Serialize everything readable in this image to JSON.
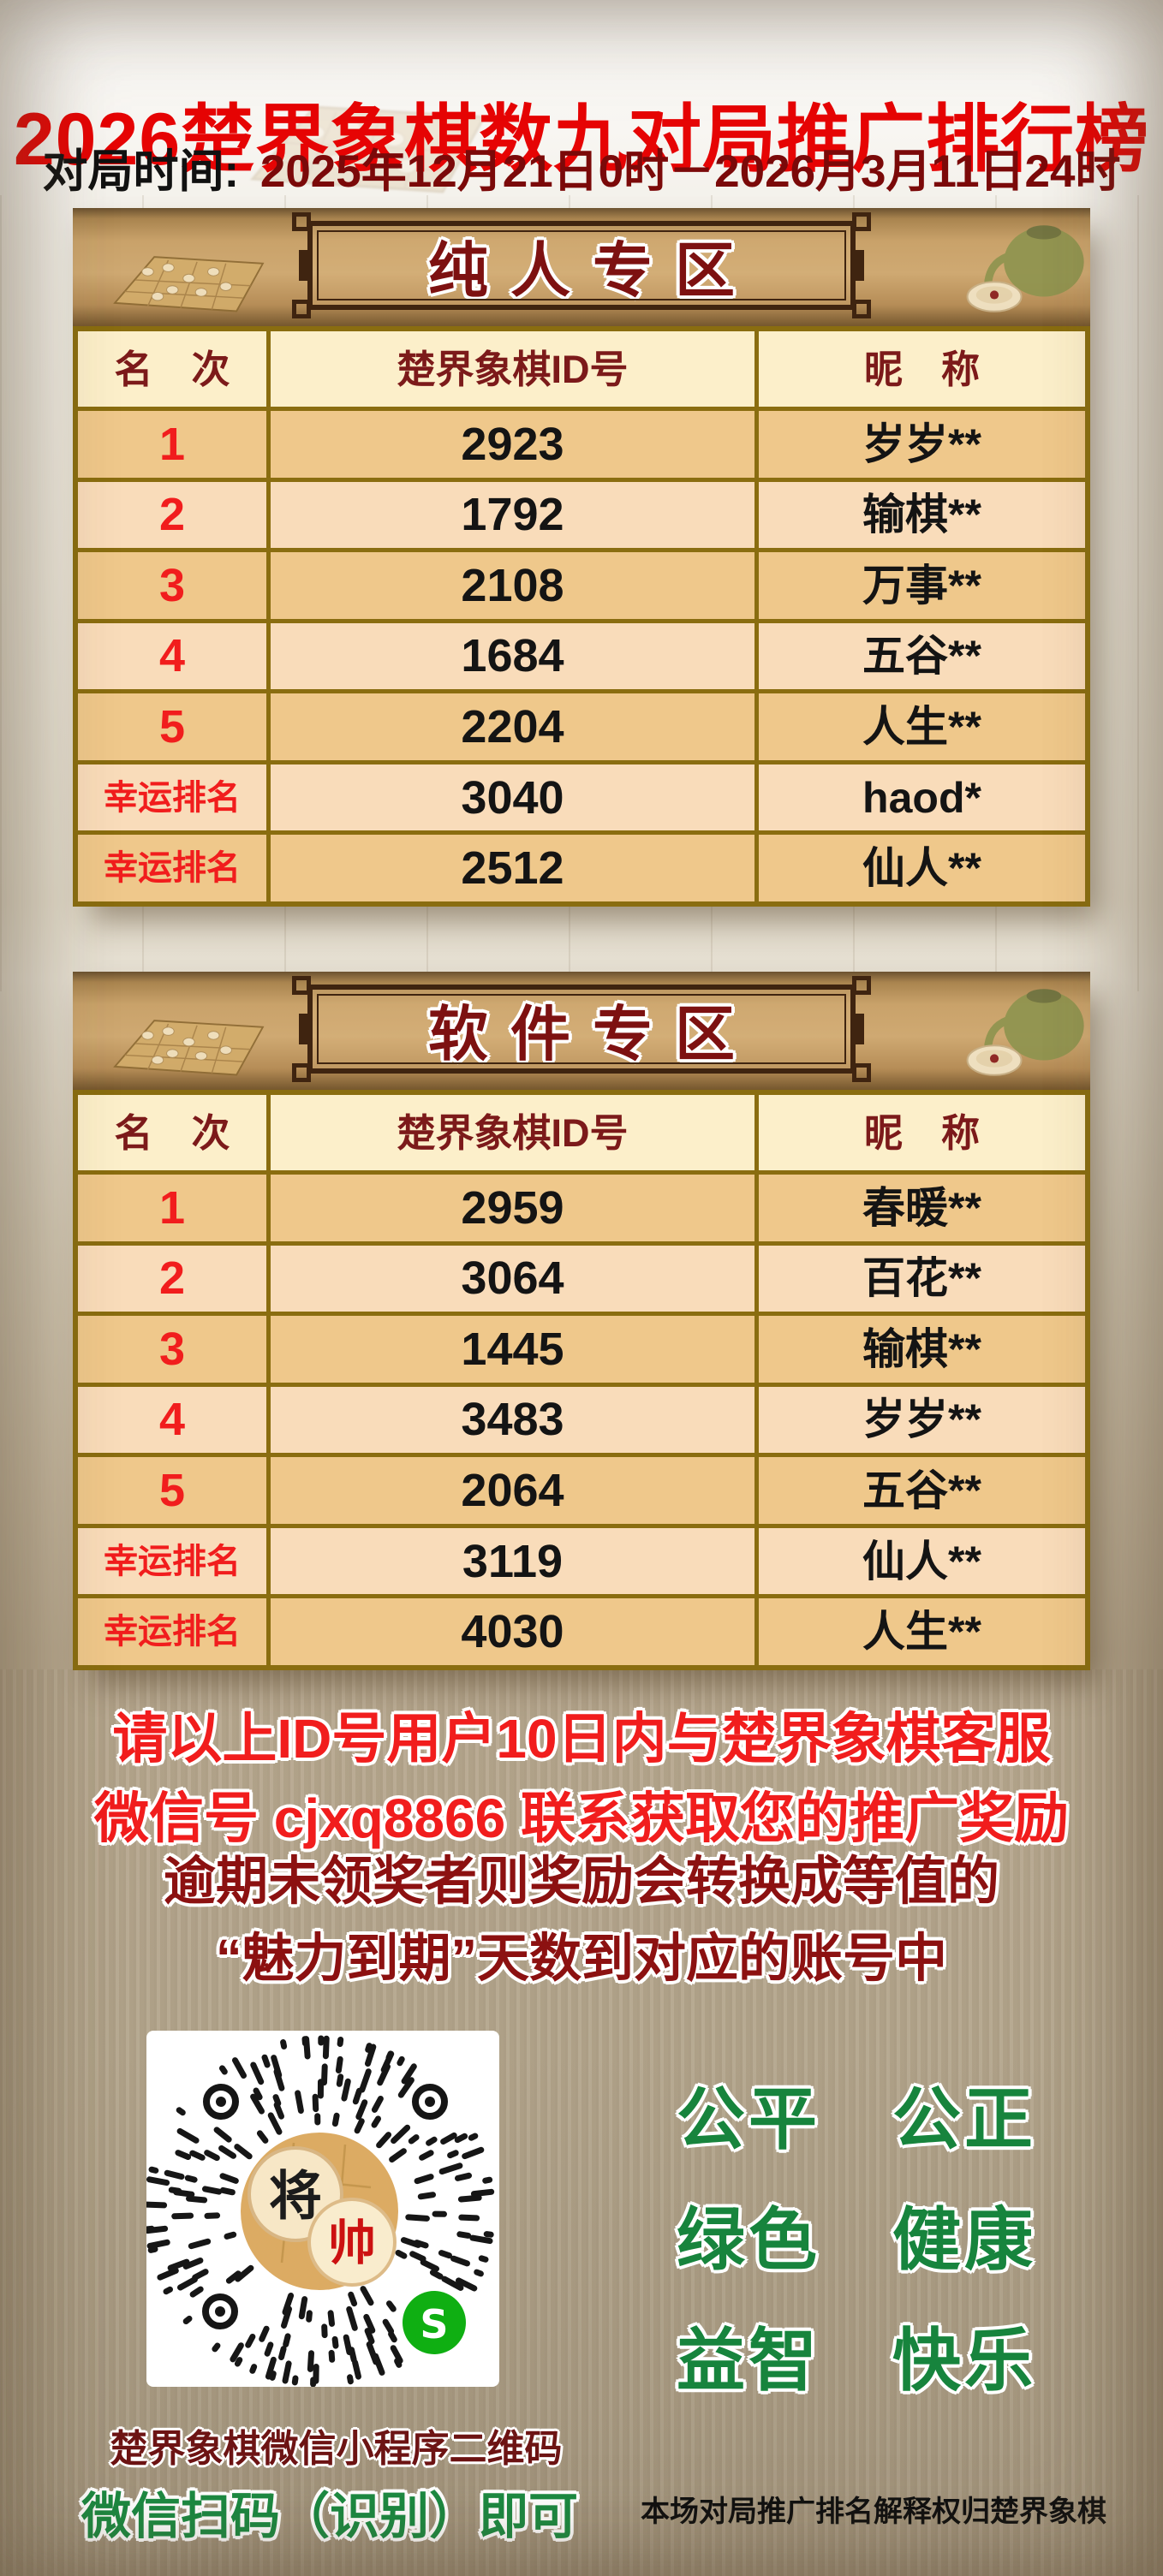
{
  "header": {
    "title": "2026楚界象棋数九对局推广排行榜",
    "time_label": "对局时间:",
    "time_value": "2025年12月21日0时－2026月3月11日24时"
  },
  "columns": {
    "rank": "名　次",
    "id": "楚界象棋ID号",
    "nick": "昵　称"
  },
  "sections": [
    {
      "banner": "纯人专区",
      "rows": [
        {
          "rank": "1",
          "id": "2923",
          "nick": "岁岁**"
        },
        {
          "rank": "2",
          "id": "1792",
          "nick": "输棋**"
        },
        {
          "rank": "3",
          "id": "2108",
          "nick": "万事**"
        },
        {
          "rank": "4",
          "id": "1684",
          "nick": "五谷**"
        },
        {
          "rank": "5",
          "id": "2204",
          "nick": "人生**"
        },
        {
          "rank": "幸运排名",
          "id": "3040",
          "nick": "haod*"
        },
        {
          "rank": "幸运排名",
          "id": "2512",
          "nick": "仙人**"
        }
      ]
    },
    {
      "banner": "软件专区",
      "rows": [
        {
          "rank": "1",
          "id": "2959",
          "nick": "春暖**"
        },
        {
          "rank": "2",
          "id": "3064",
          "nick": "百花**"
        },
        {
          "rank": "3",
          "id": "1445",
          "nick": "输棋**"
        },
        {
          "rank": "4",
          "id": "3483",
          "nick": "岁岁**"
        },
        {
          "rank": "5",
          "id": "2064",
          "nick": "五谷**"
        },
        {
          "rank": "幸运排名",
          "id": "3119",
          "nick": "仙人**"
        },
        {
          "rank": "幸运排名",
          "id": "4030",
          "nick": "人生**"
        }
      ]
    }
  ],
  "notices": {
    "red_line1": "请以上ID号用户10日内与楚界象棋客服",
    "red_line2": "微信号 cjxq8866 联系获取您的推广奖励",
    "maroon_line1": "逾期未领奖者则奖励会转换成等值的",
    "maroon_line2": "“魅力到期”天数到对应的账号中"
  },
  "slogans": [
    "公平　公正",
    "绿色　健康",
    "益智　快乐"
  ],
  "qr": {
    "caption1": "楚界象棋微信小程序二维码",
    "caption2": "微信扫码（识别）即可",
    "piece_black": "将",
    "piece_red": "帅",
    "logo_letter": "S"
  },
  "footer": {
    "disclaimer": "本场对局推广排名解释权归楚界象棋"
  },
  "colors": {
    "title_red": "#e60404",
    "date_maroon": "#7b0909",
    "banner_title_maroon": "#7d1111",
    "table_border_gold": "#8a6d10",
    "header_bg": "#fcefca",
    "row_dark": "#efc88b",
    "row_light": "#f9dcba",
    "rank_red": "#f11d1d",
    "notice_red": "#f11d1d",
    "notice_maroon": "#8c1111",
    "slogan_green": "#17843d",
    "wechat_green": "#0faf12"
  }
}
